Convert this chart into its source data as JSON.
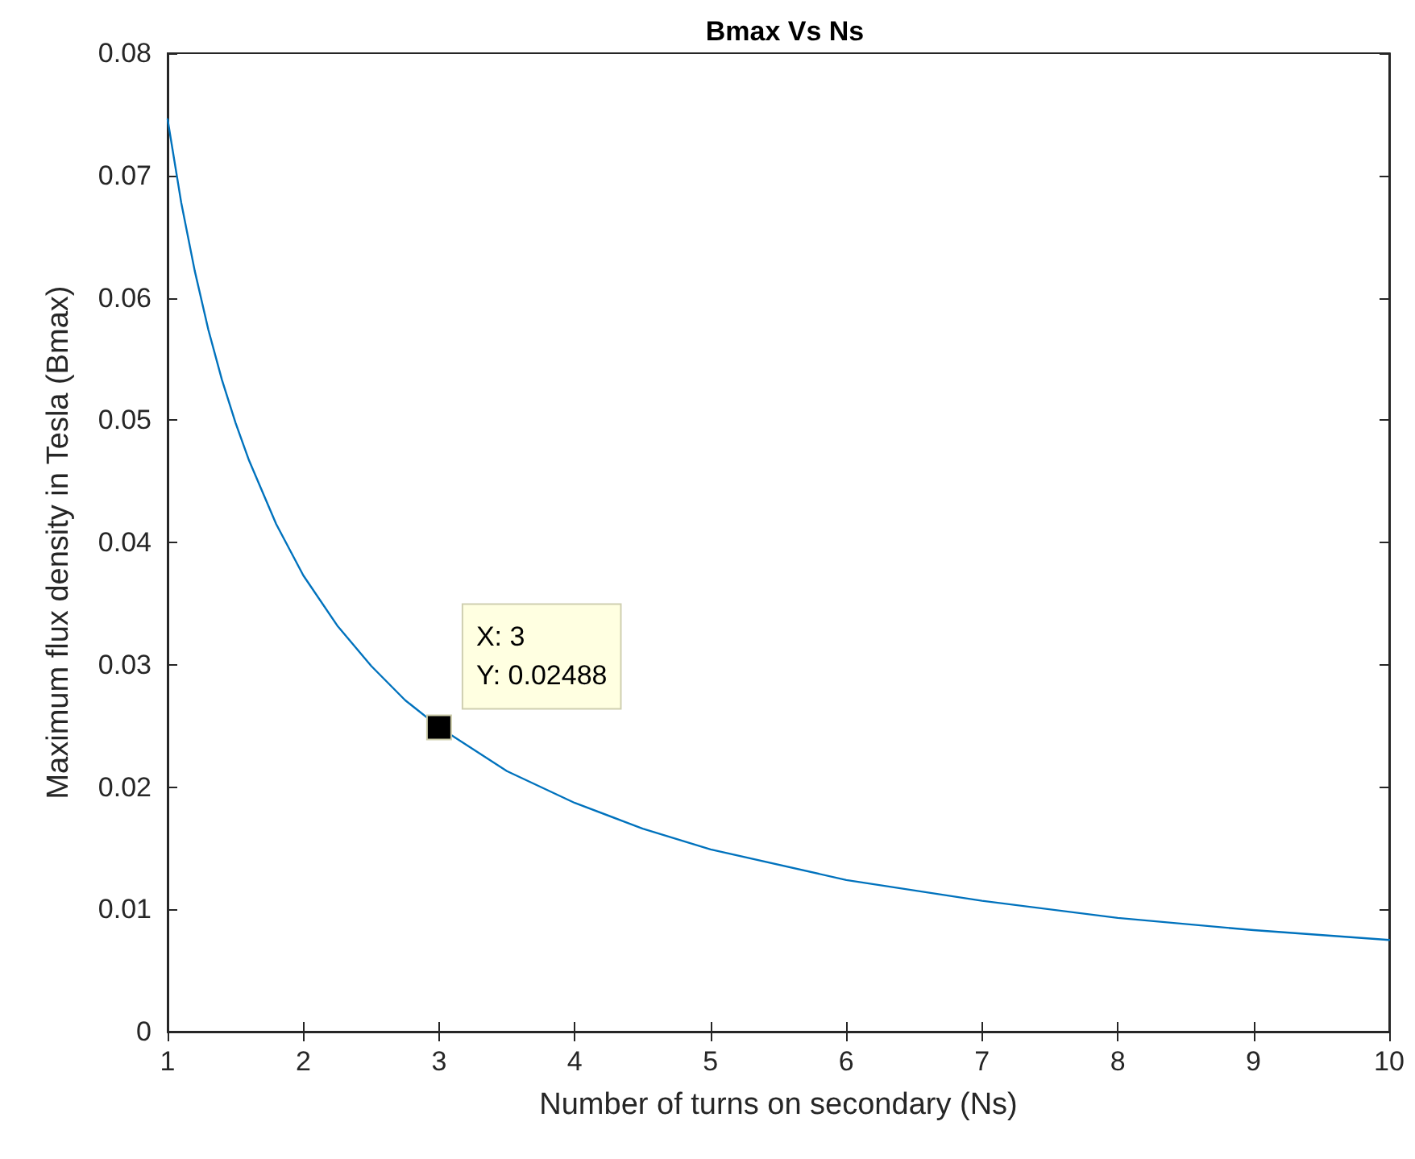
{
  "chart_data": {
    "type": "line",
    "title": "Bmax Vs Ns",
    "xlabel": "Number of turns on secondary (Ns)",
    "ylabel": "Maximum flux density in Tesla (Bmax)",
    "x": [
      1,
      1.1,
      1.2,
      1.3,
      1.4,
      1.5,
      1.6,
      1.8,
      2,
      2.25,
      2.5,
      2.75,
      3,
      3.5,
      4,
      4.5,
      5,
      6,
      7,
      8,
      9,
      10
    ],
    "series": [
      {
        "color": "#0072bd",
        "values": [
          0.0746,
          0.0678,
          0.0622,
          0.0574,
          0.0533,
          0.0498,
          0.0467,
          0.0415,
          0.0373,
          0.0332,
          0.0299,
          0.0271,
          0.0249,
          0.0213,
          0.0187,
          0.0166,
          0.0149,
          0.0124,
          0.0107,
          0.0093,
          0.0083,
          0.0075
        ]
      }
    ],
    "xlim": [
      1,
      10
    ],
    "xticks": [
      1,
      2,
      3,
      4,
      5,
      6,
      7,
      8,
      9,
      10
    ],
    "ylim": [
      0,
      0.08
    ],
    "yticks": [
      0,
      0.01,
      0.02,
      0.03,
      0.04,
      0.05,
      0.06,
      0.07,
      0.08
    ],
    "grid": false,
    "marker": "none",
    "line_style": "solid",
    "annotations": [
      {
        "text": "X: 3\nY: 0.02488",
        "x": 3,
        "y": 0.02488
      }
    ]
  }
}
